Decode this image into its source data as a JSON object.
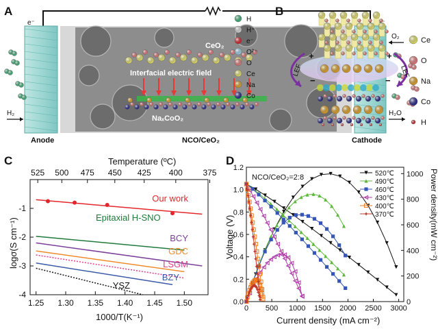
{
  "panels": {
    "A": "A",
    "B": "B",
    "C": "C",
    "D": "D"
  },
  "colors": {
    "H": "#3fb57a",
    "Hplus": "#dcdcdc",
    "e": "#d9252a",
    "O2m": "#9bd3ea",
    "O": "#e77a7a",
    "Ce": "#e8e56a",
    "Na": "#e0a227",
    "Co": "#2a2a8c",
    "ours": "#e3262a",
    "hsno": "#1f7a3a",
    "bcy": "#7b3f99",
    "gdc": "#f08a2a",
    "lsgm": "#e33a8a",
    "bzy": "#3a5aa8",
    "ysz": "#111111",
    "s520": "#111111",
    "s490": "#5cb83a",
    "s460": "#3556b5",
    "s430": "#b03aa8",
    "s400": "#f07a1a",
    "s370": "#c23a2a"
  },
  "panelA": {
    "title_left_e": "e⁻",
    "title_right_e": "e⁻",
    "o2": "O₂",
    "h2": "H₂",
    "h2o": "H₂O",
    "anode": "Anode",
    "center": "NCO/CeO₂",
    "cathode": "Cathode",
    "ceo2": "CeO₂",
    "field": "Interfacial electric field",
    "naco": "NaₓCoO₂",
    "legend": [
      {
        "key": "H",
        "label": "H"
      },
      {
        "key": "Hplus",
        "label": "H⁺"
      },
      {
        "key": "e",
        "label": "e⁻"
      },
      {
        "key": "O2m",
        "label": "O²⁻"
      },
      {
        "key": "O",
        "label": "O"
      },
      {
        "key": "Ce",
        "label": "Ce"
      },
      {
        "key": "Na",
        "label": "Na"
      },
      {
        "key": "Co",
        "label": "Co"
      }
    ]
  },
  "panelB": {
    "lef_left": "LEF",
    "lef_right": "LEF",
    "plus": "+",
    "minus": "−",
    "legend": [
      {
        "key": "Ce",
        "label": "Ce"
      },
      {
        "key": "O",
        "label": "O"
      },
      {
        "key": "Na",
        "label": "Na"
      },
      {
        "key": "Co",
        "label": "Co"
      },
      {
        "key": "H",
        "label": "H"
      }
    ]
  },
  "chart_data": [
    {
      "type": "line",
      "panel": "C",
      "title": "",
      "xlabel": "1000/T(K⁻¹)",
      "ylabel": "logσ(S cm⁻¹)",
      "top_axis_label": "Temperature (ºC)",
      "xlim": [
        1.24,
        1.54
      ],
      "ylim": [
        -4,
        0
      ],
      "xticks": [
        "1.25",
        "1.30",
        "1.35",
        "1.40",
        "1.45",
        "1.50"
      ],
      "xtick_values": [
        1.25,
        1.3,
        1.35,
        1.4,
        1.45,
        1.5
      ],
      "yticks": [
        "-4",
        "-3",
        "-2",
        "-1"
      ],
      "ytick_values": [
        -4,
        -3,
        -2,
        -1
      ],
      "top_ticks": [
        "525",
        "500",
        "475",
        "450",
        "425",
        "400",
        "375"
      ],
      "top_tick_values": [
        525,
        500,
        475,
        450,
        425,
        400,
        375
      ],
      "series": [
        {
          "name": "Our work",
          "color_key": "ours",
          "style": "solid",
          "x": [
            1.25,
            1.53
          ],
          "y": [
            -0.7,
            -1.2
          ],
          "markers_x": [
            1.27,
            1.315,
            1.37,
            1.48
          ],
          "markers_y": [
            -0.75,
            -0.8,
            -0.88,
            -1.17
          ]
        },
        {
          "name": "Epitaxial H-SNO",
          "color_key": "hsno",
          "style": "solid",
          "x": [
            1.25,
            1.5
          ],
          "y": [
            -1.97,
            -2.45
          ]
        },
        {
          "name": "BCY",
          "color_key": "bcy",
          "style": "solid",
          "x": [
            1.25,
            1.53
          ],
          "y": [
            -2.2,
            -3.0
          ]
        },
        {
          "name": "GDC",
          "color_key": "gdc",
          "style": "solid",
          "x": [
            1.25,
            1.5
          ],
          "y": [
            -2.48,
            -3.2
          ]
        },
        {
          "name": "LSGM",
          "color_key": "lsgm",
          "style": "dotted",
          "x": [
            1.25,
            1.5
          ],
          "y": [
            -2.62,
            -3.42
          ]
        },
        {
          "name": "BZY",
          "color_key": "bzy",
          "style": "solid",
          "x": [
            1.25,
            1.48
          ],
          "y": [
            -2.9,
            -3.65
          ]
        },
        {
          "name": "YSZ",
          "color_key": "ysz",
          "style": "dotted",
          "x": [
            1.25,
            1.43
          ],
          "y": [
            -3.08,
            -4.0
          ]
        }
      ]
    },
    {
      "type": "line",
      "panel": "D",
      "title": "NCO/CeO₂=2:8",
      "xlabel": "Current density (mA cm⁻²)",
      "ylabel": "Voltage (V)",
      "y2label": "Power density(mW cm⁻²)",
      "xlim": [
        0,
        3100
      ],
      "ylim": [
        0,
        1.2
      ],
      "y2lim": [
        0,
        1050
      ],
      "xticks": [
        "0",
        "500",
        "1000",
        "1500",
        "2000",
        "2500",
        "3000"
      ],
      "xtick_values": [
        0,
        500,
        1000,
        1500,
        2000,
        2500,
        3000
      ],
      "yticks": [
        "0.0",
        "0.2",
        "0.4",
        "0.6",
        "0.8",
        "1.0",
        "1.2"
      ],
      "ytick_values": [
        0,
        0.2,
        0.4,
        0.6,
        0.8,
        1.0,
        1.2
      ],
      "y2ticks": [
        "0",
        "200",
        "400",
        "600",
        "800",
        "1000"
      ],
      "y2tick_values": [
        0,
        200,
        400,
        600,
        800,
        1000
      ],
      "series": [
        {
          "name": "520℃",
          "color_key": "s520",
          "marker": "tri-down",
          "imax": 2950,
          "vocv": 1.05,
          "vend": 0.06,
          "pmax": 1000,
          "imp": 1620,
          "pend": 270
        },
        {
          "name": "490℃",
          "color_key": "s490",
          "marker": "tri-up",
          "imax": 1920,
          "vocv": 1.05,
          "vend": 0.24,
          "pmax": 840,
          "imp": 1300,
          "pend": 590
        },
        {
          "name": "460℃",
          "color_key": "s460",
          "marker": "square",
          "imax": 1950,
          "vocv": 1.05,
          "vend": 0.12,
          "pmax": 680,
          "imp": 1050,
          "pend": 360
        },
        {
          "name": "430℃",
          "color_key": "s430",
          "marker": "tri-left",
          "imax": 1100,
          "vocv": 1.04,
          "vend": 0.05,
          "pmax": 370,
          "imp": 720,
          "pend": 40
        },
        {
          "name": "400℃",
          "color_key": "s400",
          "marker": "square-o",
          "imax": 330,
          "vocv": 1.05,
          "vend": 0.04,
          "pmax": 170,
          "imp": 200,
          "pend": 20
        },
        {
          "name": "370℃",
          "color_key": "s370",
          "marker": "star",
          "imax": 270,
          "vocv": 1.05,
          "vend": 0.04,
          "pmax": 125,
          "imp": 160,
          "pend": 15
        }
      ]
    }
  ]
}
